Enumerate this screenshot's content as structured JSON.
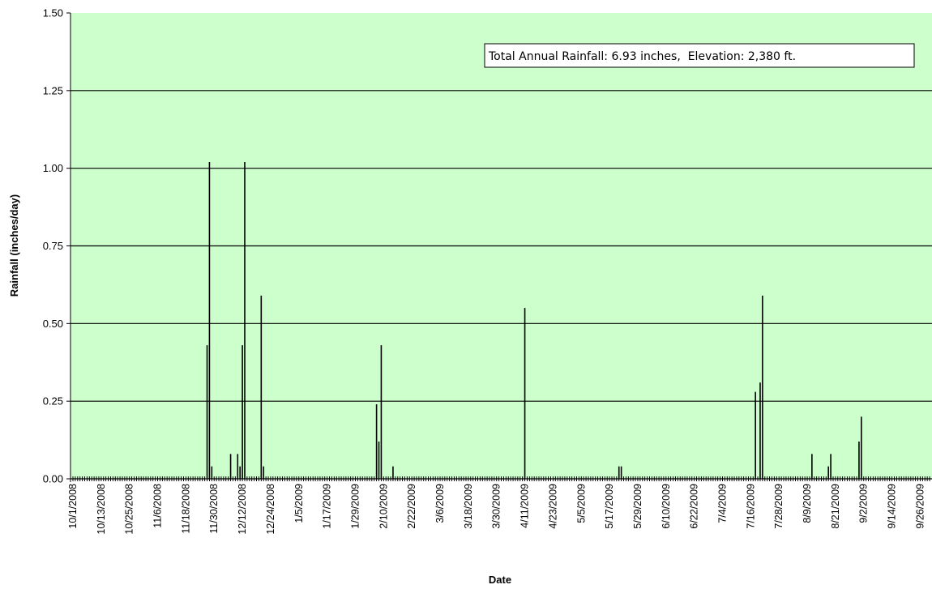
{
  "chart_data": {
    "type": "bar",
    "title": "",
    "xlabel": "Date",
    "ylabel": "Rainfall (inches/day)",
    "ylim": [
      0,
      1.5
    ],
    "yticks": [
      "0.00",
      "0.25",
      "0.50",
      "0.75",
      "1.00",
      "1.25",
      "1.50"
    ],
    "xlim": [
      "2008-10-01",
      "2009-09-30"
    ],
    "x_tick_labels": [
      "10/1/2008",
      "10/13/2008",
      "10/25/2008",
      "11/6/2008",
      "11/18/2008",
      "11/30/2008",
      "12/12/2008",
      "12/24/2008",
      "1/5/2009",
      "1/17/2009",
      "1/29/2009",
      "2/10/2009",
      "2/22/2009",
      "3/6/2009",
      "3/18/2009",
      "3/30/2009",
      "4/11/2009",
      "4/23/2009",
      "5/5/2009",
      "5/17/2009",
      "5/29/2009",
      "6/10/2009",
      "6/22/2009",
      "7/4/2009",
      "7/16/2009",
      "7/28/2009",
      "8/9/2009",
      "8/21/2009",
      "9/2/2009",
      "9/14/2009",
      "9/26/2009"
    ],
    "grid": true,
    "annotation": "Total Annual Rainfall: 6.93 inches,  Elevation: 2,380 ft.",
    "annotation_placement": "top-right",
    "colors": {
      "plot_background": "#ccffcc",
      "bars": "#000000",
      "gridlines": "#000000"
    },
    "series": [
      {
        "x": [
          "2008-11-27",
          "2008-11-28",
          "2008-11-29",
          "2008-12-07",
          "2008-12-10",
          "2008-12-11",
          "2008-12-12",
          "2008-12-13",
          "2008-12-20",
          "2008-12-21",
          "2009-02-07",
          "2009-02-08",
          "2009-02-09",
          "2009-02-14",
          "2009-04-11",
          "2009-05-21",
          "2009-05-22",
          "2009-07-18",
          "2009-07-20",
          "2009-07-21",
          "2009-08-11",
          "2009-08-18",
          "2009-08-19",
          "2009-08-31",
          "2009-09-01"
        ],
        "values": [
          0.43,
          1.02,
          0.04,
          0.08,
          0.08,
          0.04,
          0.43,
          1.02,
          0.59,
          0.04,
          0.24,
          0.12,
          0.43,
          0.04,
          0.55,
          0.04,
          0.04,
          0.28,
          0.31,
          0.59,
          0.08,
          0.04,
          0.08,
          0.12,
          0.2
        ]
      }
    ]
  }
}
